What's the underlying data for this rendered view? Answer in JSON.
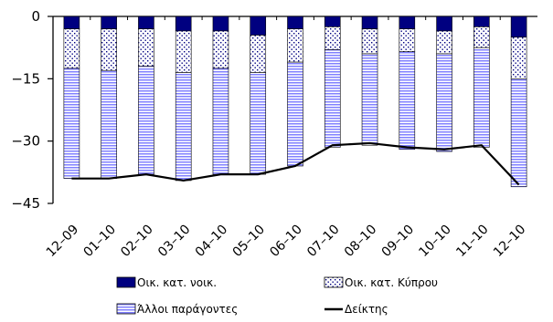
{
  "chart_data": {
    "type": "bar",
    "stacked": true,
    "categories": [
      "12-09",
      "01-10",
      "02-10",
      "03-10",
      "04-10",
      "05-10",
      "06-10",
      "07-10",
      "08-10",
      "09-10",
      "10-10",
      "11-10",
      "12-10"
    ],
    "series": [
      {
        "name": "Οικ. κατ. νοικ.",
        "type": "bar",
        "color": "#000080",
        "pattern": "solid",
        "values": [
          -3.0,
          -3.0,
          -3.0,
          -3.5,
          -3.5,
          -4.5,
          -3.0,
          -2.5,
          -3.0,
          -3.0,
          -3.5,
          -2.5,
          -5.0
        ]
      },
      {
        "name": "Οικ. κατ. Κύπρου",
        "type": "bar",
        "color": "#000080",
        "pattern": "dots",
        "values": [
          -9.5,
          -10.0,
          -9.0,
          -10.0,
          -9.0,
          -9.0,
          -8.0,
          -5.5,
          -6.0,
          -5.5,
          -5.5,
          -5.0,
          -10.0
        ]
      },
      {
        "name": "Άλλοι παράγοντες",
        "type": "bar",
        "color": "#8080ff",
        "pattern": "hstripes",
        "values": [
          -26.5,
          -26.0,
          -26.0,
          -26.0,
          -25.5,
          -24.5,
          -25.0,
          -23.5,
          -22.0,
          -23.5,
          -23.5,
          -24.0,
          -26.0
        ]
      },
      {
        "name": "Δείκτης",
        "type": "line",
        "color": "#000000",
        "values": [
          -39.0,
          -39.0,
          -38.0,
          -39.5,
          -38.0,
          -38.0,
          -36.0,
          -31.0,
          -30.5,
          -31.5,
          -32.0,
          -31.0,
          -40.5
        ]
      }
    ],
    "yticks": [
      0,
      -15,
      -30,
      -45
    ],
    "ylim": [
      -45,
      0
    ],
    "grid": false,
    "legend_position": "bottom"
  }
}
